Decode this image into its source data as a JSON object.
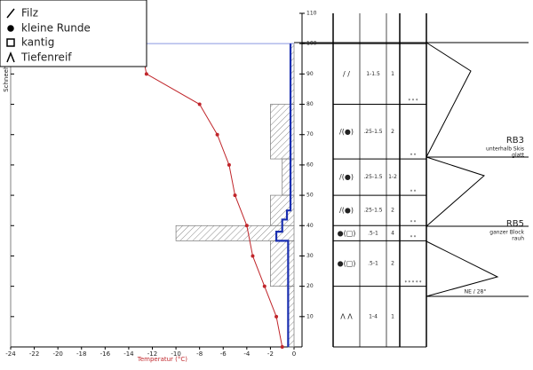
{
  "legend": [
    {
      "symbol": "/",
      "label": "Filz"
    },
    {
      "symbol": "●",
      "label": "kleine Runde"
    },
    {
      "symbol": "□",
      "label": "kantig"
    },
    {
      "symbol": "Λ",
      "label": "Tiefenreif"
    }
  ],
  "chart_data": {
    "type": "line",
    "x_label": "Temperatur (°C)",
    "y_label": "Schneehöhe (cm)",
    "xlim": [
      -24,
      0
    ],
    "xticks": [
      -24,
      -22,
      -20,
      -18,
      -16,
      -14,
      -12,
      -10,
      -8,
      -6,
      -4,
      -2,
      0
    ],
    "ylim": [
      0,
      110
    ],
    "yticks": [
      10,
      20,
      30,
      40,
      50,
      60,
      70,
      80,
      90,
      100,
      110
    ],
    "temperature": {
      "color": "#c0262b",
      "height": [
        100,
        90,
        80,
        70,
        60,
        50,
        40,
        30,
        20,
        10,
        0
      ],
      "values": [
        -13,
        -12.5,
        -8,
        -6.5,
        -5.5,
        -5,
        -4,
        -3.5,
        -2.5,
        -1.5,
        -1
      ]
    },
    "hardness_layers": [
      {
        "bottom": 0,
        "top": 20,
        "value": -0.5
      },
      {
        "bottom": 20,
        "top": 35,
        "value": -2
      },
      {
        "bottom": 35,
        "top": 40,
        "value": -10
      },
      {
        "bottom": 40,
        "top": 50,
        "value": -2
      },
      {
        "bottom": 50,
        "top": 62,
        "value": -1
      },
      {
        "bottom": 62,
        "top": 80,
        "value": -2
      },
      {
        "bottom": 80,
        "top": 100,
        "value": -0.3
      }
    ],
    "ram_profile": {
      "color": "#1a2fb0",
      "layers": [
        {
          "bottom": 0,
          "top": 35,
          "value": -0.5
        },
        {
          "bottom": 35,
          "top": 38,
          "value": -1.5
        },
        {
          "bottom": 38,
          "top": 42,
          "value": -1
        },
        {
          "bottom": 42,
          "top": 45,
          "value": -0.6
        },
        {
          "bottom": 45,
          "top": 100,
          "value": -0.3
        }
      ]
    },
    "boundaries": [
      100,
      80,
      62,
      50,
      40,
      35,
      20,
      0
    ],
    "rows": [
      {
        "grain": "/ /",
        "size": "1-1.5",
        "hardness": "1"
      },
      {
        "grain": "/(●)",
        "size": ".25-1.5",
        "hardness": "2"
      },
      {
        "grain": "/(●)",
        "size": ".25-1.5",
        "hardness": "1-2"
      },
      {
        "grain": "/(●)",
        "size": ".25-1.5",
        "hardness": "2"
      },
      {
        "grain": "●(□)",
        "size": ".5-1",
        "hardness": "4"
      },
      {
        "grain": "●(□)",
        "size": ".5-1",
        "hardness": "2"
      },
      {
        "grain": "Λ Λ",
        "size": "1-4",
        "hardness": "1"
      }
    ],
    "stability_marks": [
      "* * *",
      "* *",
      "* *",
      "* *",
      "* *",
      "* * * * *"
    ],
    "tests": [
      {
        "label": "RB3",
        "lines": [
          "unterhalb Skis",
          "glatt"
        ]
      },
      {
        "label": "RB5",
        "lines": [
          "ganzer Block",
          "rauh"
        ]
      }
    ],
    "slope": "NE / 28°"
  }
}
